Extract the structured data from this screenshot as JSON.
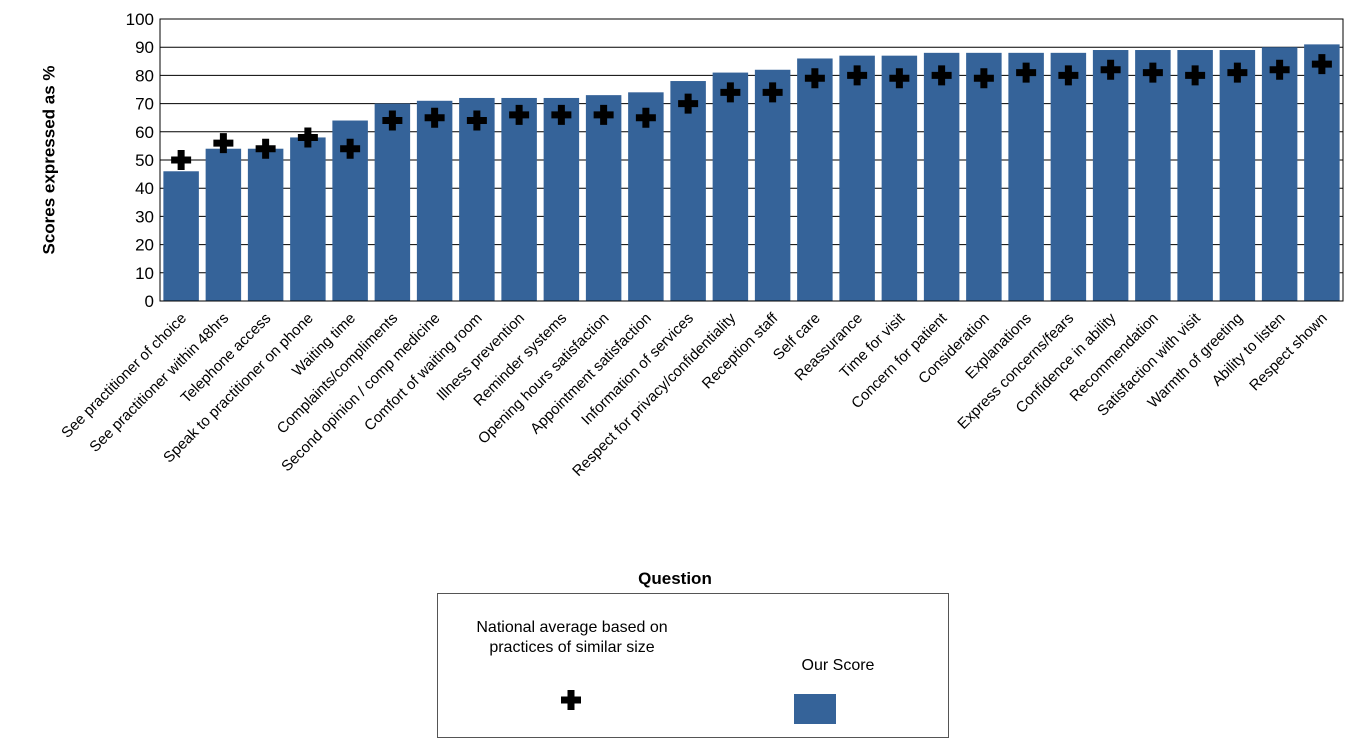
{
  "chart_data": {
    "type": "bar",
    "title": "",
    "xlabel": "Question",
    "ylabel": "Scores expressed as %",
    "ylim": [
      0,
      100
    ],
    "yticks": [
      0,
      10,
      20,
      30,
      40,
      50,
      60,
      70,
      80,
      90,
      100
    ],
    "grid": true,
    "categories": [
      "See practitioner of choice",
      "See practitioner within 48hrs",
      "Telephone access",
      "Speak to practitioner on phone",
      "Waiting time",
      "Complaints/compliments",
      "Second opinion / comp medicine",
      "Comfort of waiting room",
      "Illness prevention",
      "Reminder systems",
      "Opening hours satisfaction",
      "Appointment satisfaction",
      "Information of services",
      "Respect for privacy/confidentiality",
      "Reception staff",
      "Self care",
      "Reassurance",
      "Time for visit",
      "Concern for patient",
      "Consideration",
      "Explanations",
      "Express concerns/fears",
      "Confidence in ability",
      "Recommendation",
      "Satisfaction with visit",
      "Warmth of greeting",
      "Ability to listen",
      "Respect shown"
    ],
    "series": [
      {
        "name": "Our Score",
        "type": "bar",
        "color": "#356399",
        "values": [
          46,
          54,
          54,
          58,
          64,
          70,
          71,
          72,
          72,
          72,
          73,
          74,
          78,
          81,
          82,
          86,
          87,
          87,
          88,
          88,
          88,
          88,
          89,
          89,
          89,
          89,
          90,
          91
        ]
      },
      {
        "name": "National average based on practices of similar size",
        "type": "marker",
        "marker": "plus",
        "color": "#000000",
        "values": [
          50,
          56,
          54,
          58,
          54,
          64,
          65,
          64,
          66,
          66,
          66,
          65,
          70,
          74,
          74,
          79,
          80,
          79,
          80,
          79,
          81,
          80,
          82,
          81,
          80,
          81,
          82,
          84
        ]
      }
    ],
    "legend": {
      "position": "bottom",
      "avg_label": "National average based on practices of similar size",
      "score_label": "Our Score"
    }
  }
}
